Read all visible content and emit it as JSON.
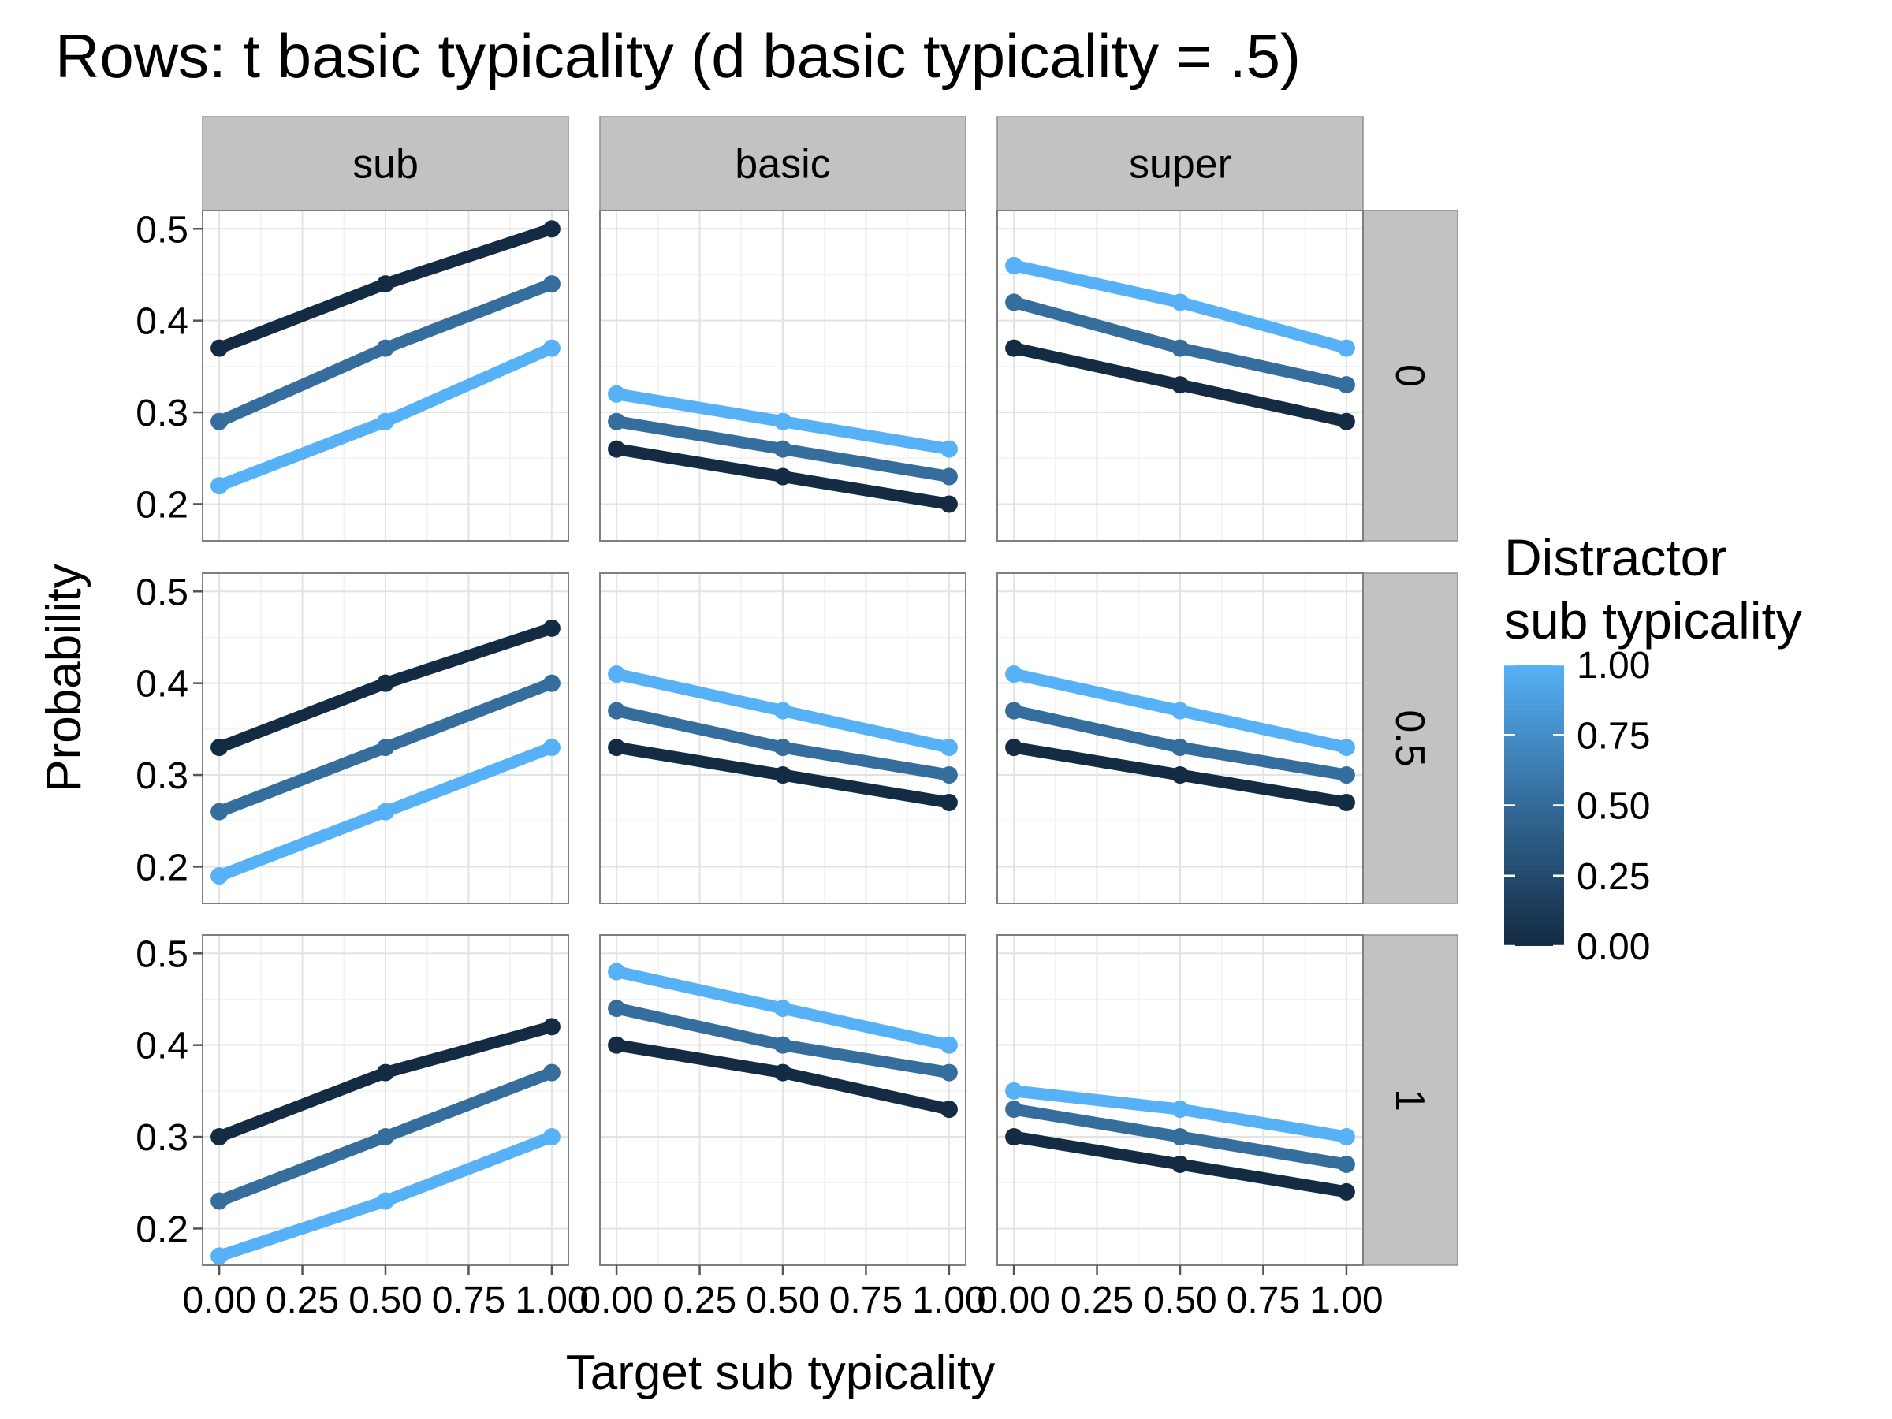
{
  "chart_data": {
    "type": "line",
    "title": "Rows: t basic typicality (d basic typicality = .5)",
    "xlabel": "Target sub typicality",
    "ylabel": "Probability",
    "x": [
      0,
      0.5,
      1
    ],
    "x_tick_labels": [
      "0.00",
      "0.25",
      "0.50",
      "0.75",
      "1.00"
    ],
    "x_ticks": [
      0,
      0.25,
      0.5,
      0.75,
      1
    ],
    "xlim": [
      -0.05,
      1.05
    ],
    "y_tick_labels": [
      "0.2",
      "0.3",
      "0.4",
      "0.5"
    ],
    "y_ticks": [
      0.2,
      0.3,
      0.4,
      0.5
    ],
    "ylim": [
      0.16,
      0.52
    ],
    "grid": true,
    "columns": [
      "sub",
      "basic",
      "super"
    ],
    "rows": [
      "0",
      "0.5",
      "1"
    ],
    "color_scale": {
      "low": "#132B43",
      "mid": "#336A98",
      "high": "#56B1F7"
    },
    "legend": {
      "title": "Distractor\nsub typicality",
      "labels": [
        "1.00",
        "0.75",
        "0.50",
        "0.25",
        "0.00"
      ],
      "values": [
        1,
        0.75,
        0.5,
        0.25,
        0
      ],
      "placement": "right"
    },
    "panels": [
      {
        "row": "0",
        "col": "sub",
        "series": [
          {
            "distractor": 0,
            "values": [
              0.37,
              0.44,
              0.5
            ]
          },
          {
            "distractor": 0.5,
            "values": [
              0.29,
              0.37,
              0.44
            ]
          },
          {
            "distractor": 1,
            "values": [
              0.22,
              0.29,
              0.37
            ]
          }
        ]
      },
      {
        "row": "0",
        "col": "basic",
        "series": [
          {
            "distractor": 0,
            "values": [
              0.26,
              0.23,
              0.2
            ]
          },
          {
            "distractor": 0.5,
            "values": [
              0.29,
              0.26,
              0.23
            ]
          },
          {
            "distractor": 1,
            "values": [
              0.32,
              0.29,
              0.26
            ]
          }
        ]
      },
      {
        "row": "0",
        "col": "super",
        "series": [
          {
            "distractor": 0,
            "values": [
              0.37,
              0.33,
              0.29
            ]
          },
          {
            "distractor": 0.5,
            "values": [
              0.42,
              0.37,
              0.33
            ]
          },
          {
            "distractor": 1,
            "values": [
              0.46,
              0.42,
              0.37
            ]
          }
        ]
      },
      {
        "row": "0.5",
        "col": "sub",
        "series": [
          {
            "distractor": 0,
            "values": [
              0.33,
              0.4,
              0.46
            ]
          },
          {
            "distractor": 0.5,
            "values": [
              0.26,
              0.33,
              0.4
            ]
          },
          {
            "distractor": 1,
            "values": [
              0.19,
              0.26,
              0.33
            ]
          }
        ]
      },
      {
        "row": "0.5",
        "col": "basic",
        "series": [
          {
            "distractor": 0,
            "values": [
              0.33,
              0.3,
              0.27
            ]
          },
          {
            "distractor": 0.5,
            "values": [
              0.37,
              0.33,
              0.3
            ]
          },
          {
            "distractor": 1,
            "values": [
              0.41,
              0.37,
              0.33
            ]
          }
        ]
      },
      {
        "row": "0.5",
        "col": "super",
        "series": [
          {
            "distractor": 0,
            "values": [
              0.33,
              0.3,
              0.27
            ]
          },
          {
            "distractor": 0.5,
            "values": [
              0.37,
              0.33,
              0.3
            ]
          },
          {
            "distractor": 1,
            "values": [
              0.41,
              0.37,
              0.33
            ]
          }
        ]
      },
      {
        "row": "1",
        "col": "sub",
        "series": [
          {
            "distractor": 0,
            "values": [
              0.3,
              0.37,
              0.42
            ]
          },
          {
            "distractor": 0.5,
            "values": [
              0.23,
              0.3,
              0.37
            ]
          },
          {
            "distractor": 1,
            "values": [
              0.17,
              0.23,
              0.3
            ]
          }
        ]
      },
      {
        "row": "1",
        "col": "basic",
        "series": [
          {
            "distractor": 0,
            "values": [
              0.4,
              0.37,
              0.33
            ]
          },
          {
            "distractor": 0.5,
            "values": [
              0.44,
              0.4,
              0.37
            ]
          },
          {
            "distractor": 1,
            "values": [
              0.48,
              0.44,
              0.4
            ]
          }
        ]
      },
      {
        "row": "1",
        "col": "super",
        "series": [
          {
            "distractor": 0,
            "values": [
              0.3,
              0.27,
              0.24
            ]
          },
          {
            "distractor": 0.5,
            "values": [
              0.33,
              0.3,
              0.27
            ]
          },
          {
            "distractor": 1,
            "values": [
              0.35,
              0.33,
              0.3
            ]
          }
        ]
      }
    ]
  }
}
